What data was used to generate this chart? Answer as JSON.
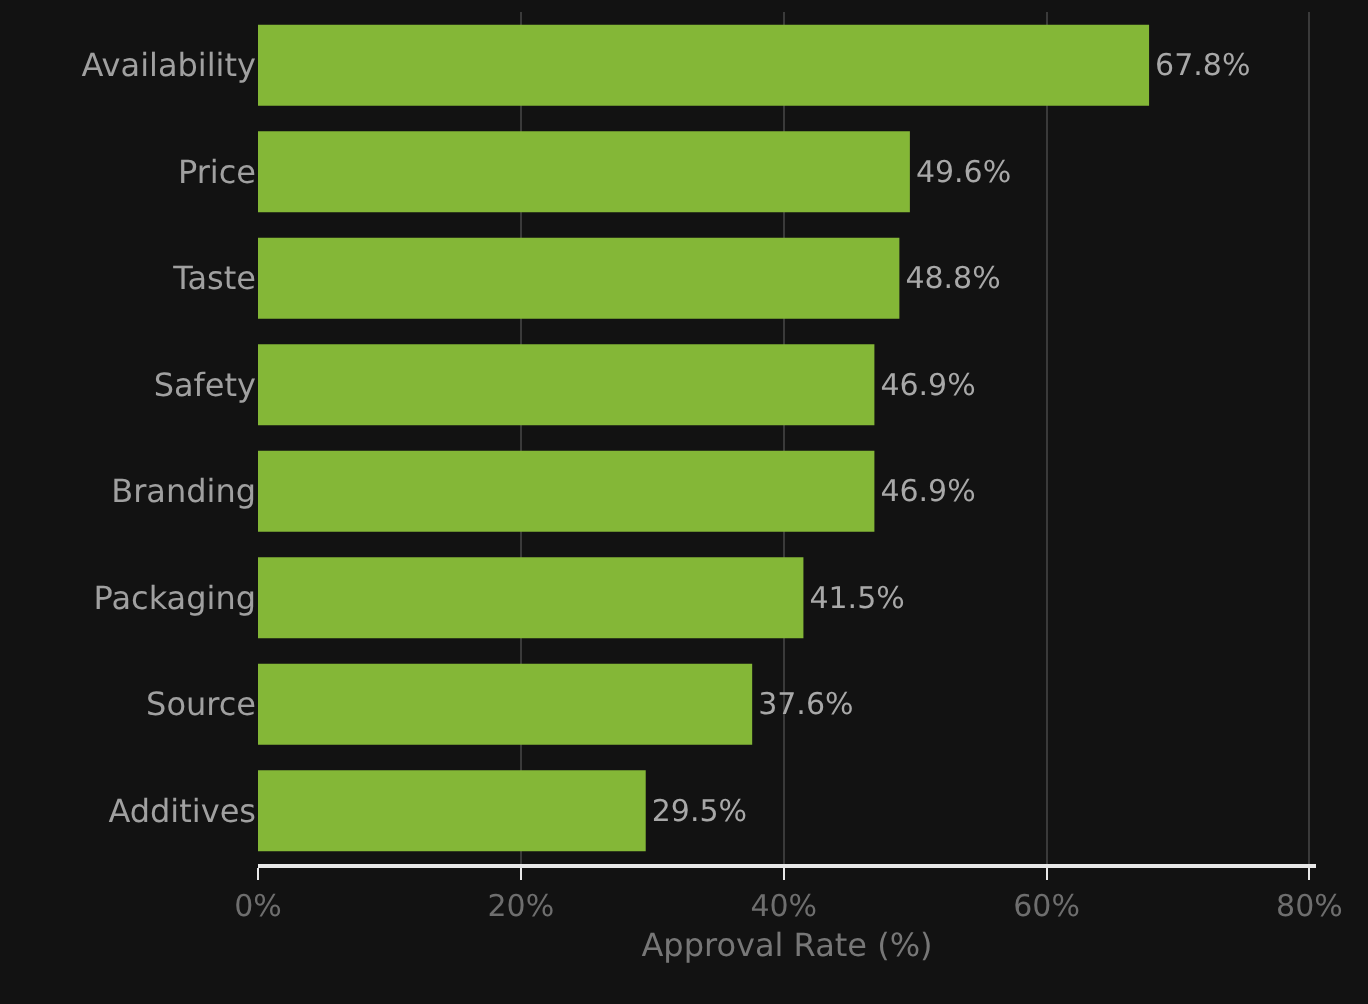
{
  "chart_data": {
    "type": "bar",
    "orientation": "horizontal",
    "xlabel": "Approval Rate (%)",
    "categories": [
      "Availability",
      "Price",
      "Taste",
      "Safety",
      "Branding",
      "Packaging",
      "Source",
      "Additives"
    ],
    "values": [
      67.8,
      49.6,
      48.8,
      46.9,
      46.9,
      41.5,
      37.6,
      29.5
    ],
    "value_labels": [
      "67.8%",
      "49.6%",
      "48.8%",
      "46.9%",
      "46.9%",
      "41.5%",
      "37.6%",
      "29.5%"
    ],
    "color": "#84b737",
    "xlim": [
      0,
      80.5
    ],
    "xticks": [
      {
        "value": 0,
        "label": "0%"
      },
      {
        "value": 20,
        "label": "20%"
      },
      {
        "value": 40,
        "label": "40%"
      },
      {
        "value": 60,
        "label": "60%"
      },
      {
        "value": 80,
        "label": "80%"
      }
    ],
    "grid": "x",
    "legend": false
  }
}
